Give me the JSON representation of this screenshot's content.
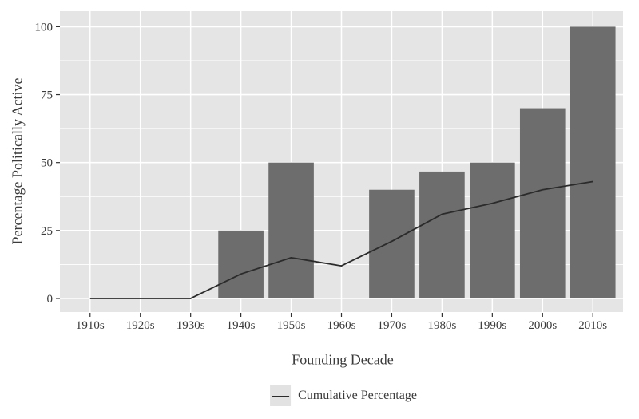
{
  "chart_data": {
    "type": "bar",
    "categories": [
      "1910s",
      "1920s",
      "1930s",
      "1940s",
      "1950s",
      "1960s",
      "1970s",
      "1980s",
      "1990s",
      "2000s",
      "2010s"
    ],
    "series": [
      {
        "name": "Percentage Politically Active",
        "type": "bar",
        "values": [
          0,
          0,
          0,
          25,
          50,
          0,
          40,
          46.7,
          50,
          70,
          100
        ]
      },
      {
        "name": "Cumulative Percentage",
        "type": "line",
        "values": [
          0,
          0,
          0,
          9,
          15,
          12,
          21,
          31,
          35,
          40,
          43
        ]
      }
    ],
    "title": "",
    "xlabel": "Founding Decade",
    "ylabel": "Percentage Politically Active",
    "ylim": [
      0,
      100
    ],
    "yticks": [
      0,
      25,
      50,
      75,
      100
    ],
    "grid": "major-white-with-minor",
    "legend": {
      "position": "bottom-center",
      "entries": [
        {
          "label": "Cumulative Percentage",
          "symbol": "line"
        }
      ]
    },
    "colors": {
      "panel_bg": "#e5e5e5",
      "grid": "#ffffff",
      "bar": "#6d6d6d",
      "line": "#2b2b2b",
      "text": "#3b3b3b",
      "tick": "#333333",
      "legend_key_bg": "#e2e2e2",
      "outer_bg": "#ffffff"
    }
  }
}
